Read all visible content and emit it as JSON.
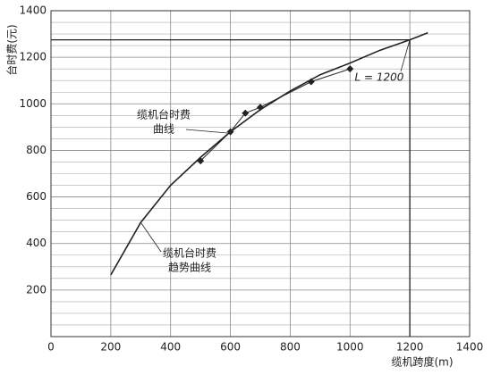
{
  "chart_data": {
    "type": "line",
    "xlabel": "缆机跨度(m)",
    "ylabel": "台时费(元)",
    "xlim": [
      0,
      1400
    ],
    "ylim": [
      0,
      1400
    ],
    "xticks": [
      0,
      200,
      400,
      600,
      800,
      1000,
      1200,
      1400
    ],
    "yticks": [
      200,
      400,
      600,
      800,
      1000,
      1200,
      1400
    ],
    "y_minor_ticks": [
      50,
      100,
      150,
      250,
      300,
      350,
      450,
      500,
      550,
      650,
      700,
      750,
      850,
      900,
      950,
      1050,
      1100,
      1150,
      1250,
      1300,
      1350
    ],
    "grid": true,
    "series": [
      {
        "marker": "diamond",
        "color": "#222222",
        "x": [
          500,
          600,
          650,
          700,
          870,
          1000
        ],
        "values": [
          755,
          880,
          960,
          985,
          1095,
          1150
        ]
      },
      {
        "color": "#222222",
        "x": [
          200,
          300,
          400,
          500,
          600,
          700,
          800,
          900,
          1000,
          1100,
          1200,
          1260
        ],
        "values": [
          265,
          490,
          650,
          770,
          880,
          975,
          1055,
          1125,
          1175,
          1230,
          1275,
          1305
        ]
      }
    ],
    "reference": {
      "x": 1200,
      "y": 1275,
      "label": "L = 1200"
    },
    "annotations": [
      {
        "lines": [
          "缆机台时费",
          "曲线"
        ]
      },
      {
        "lines": [
          "缆机台时费",
          "趋势曲线"
        ]
      }
    ]
  }
}
